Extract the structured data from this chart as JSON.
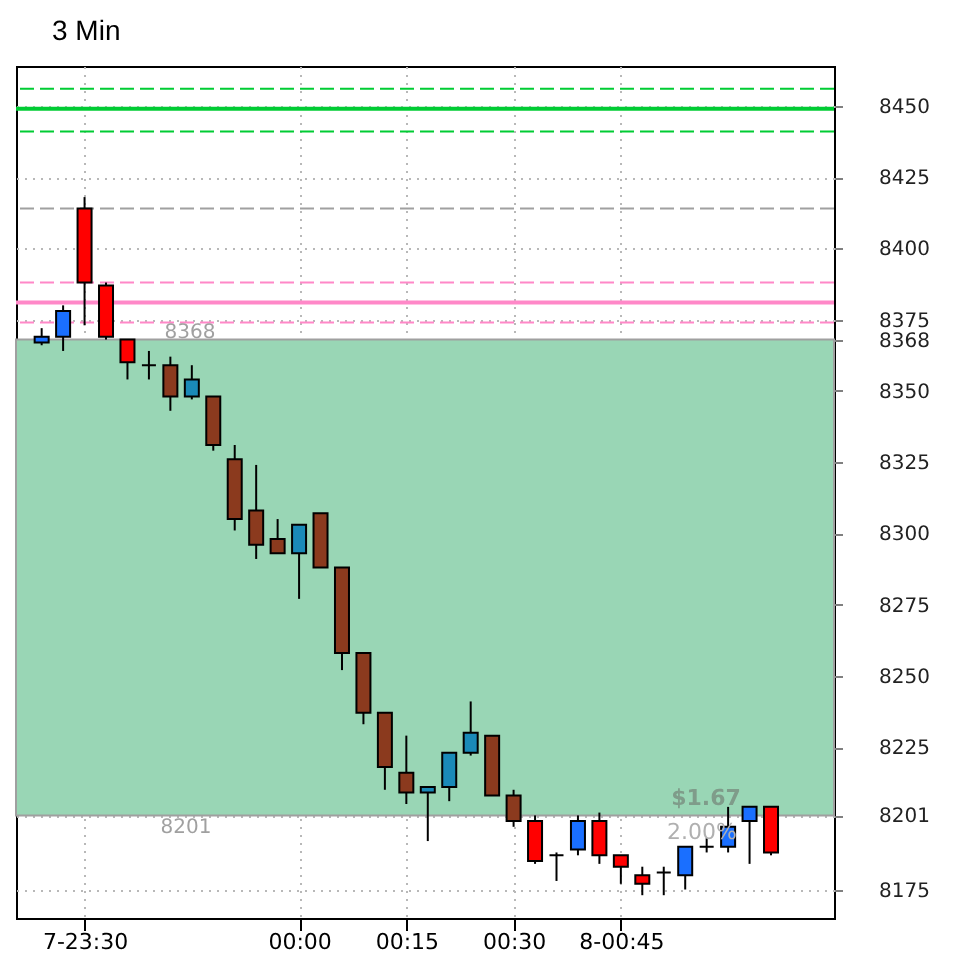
{
  "chart_data": {
    "type": "candlestick",
    "title": "3 Min",
    "categories": [
      null,
      null,
      "7-23:30",
      null,
      null,
      null,
      null,
      null,
      null,
      null,
      null,
      null,
      "00:00",
      null,
      null,
      null,
      null,
      "00:15",
      null,
      null,
      null,
      null,
      "00:30",
      null,
      null,
      null,
      null,
      "8-00:45",
      null,
      null,
      null,
      null,
      null,
      null,
      null
    ],
    "ohlc": [
      [
        8367,
        8372,
        8366,
        8369
      ],
      [
        8369,
        8380,
        8364,
        8378
      ],
      [
        8414,
        8418,
        8373,
        8388
      ],
      [
        8387,
        8388,
        8368,
        8369
      ],
      [
        8368,
        8368,
        8354,
        8360
      ],
      [
        8359,
        8364,
        8354,
        8359
      ],
      [
        8359,
        8362,
        8343,
        8348
      ],
      [
        8348,
        8359,
        8347,
        8354
      ],
      [
        8348,
        8348,
        8329,
        8331
      ],
      [
        8326,
        8331,
        8301,
        8305
      ],
      [
        8308,
        8324,
        8291,
        8296
      ],
      [
        8298,
        8305,
        8293,
        8293
      ],
      [
        8293,
        8303,
        8277,
        8303
      ],
      [
        8307,
        8307,
        8288,
        8288
      ],
      [
        8288,
        8288,
        8252,
        8258
      ],
      [
        8258,
        8258,
        8233,
        8237
      ],
      [
        8237,
        8237,
        8210,
        8218
      ],
      [
        8216,
        8229,
        8205,
        8209
      ],
      [
        8209,
        8211,
        8192,
        8211
      ],
      [
        8211,
        8223,
        8206,
        8223
      ],
      [
        8223,
        8241,
        8222,
        8230
      ],
      [
        8229,
        8229,
        8208,
        8208
      ],
      [
        8208,
        8210,
        8197,
        8199
      ],
      [
        8199,
        8201,
        8184,
        8185
      ],
      [
        8187,
        8188,
        8178,
        8187
      ],
      [
        8189,
        8201,
        8187,
        8199
      ],
      [
        8199,
        8202,
        8184,
        8187
      ],
      [
        8187,
        8187,
        8177,
        8183
      ],
      [
        8180,
        8183,
        8173,
        8177
      ],
      [
        8181,
        8183,
        8173,
        8181
      ],
      [
        8180,
        8190,
        8175,
        8190
      ],
      [
        8190,
        8193,
        8188,
        8190
      ],
      [
        8190,
        8204,
        8188,
        8197
      ],
      [
        8199,
        8204,
        8184,
        8204
      ],
      [
        8204,
        8204,
        8187,
        8188
      ]
    ],
    "colors": [
      "#1a6fff",
      "#1a6fff",
      "#ff0000",
      "#ff0000",
      "#ff0000",
      "#000000",
      "#8b3a1e",
      "#1a8ab8",
      "#8b3a1e",
      "#8b3a1e",
      "#8b3a1e",
      "#8b3a1e",
      "#1a8ab8",
      "#8b3a1e",
      "#8b3a1e",
      "#8b3a1e",
      "#8b3a1e",
      "#8b3a1e",
      "#1a8ab8",
      "#1a8ab8",
      "#1a8ab8",
      "#8b3a1e",
      "#8b3a1e",
      "#ff0000",
      "#000000",
      "#1a6fff",
      "#ff0000",
      "#ff0000",
      "#ff0000",
      "#000000",
      "#1a6fff",
      "#000000",
      "#1a6fff",
      "#1a6fff",
      "#ff0000"
    ],
    "ylim": [
      8165,
      8464
    ],
    "yticks": [
      8175,
      8201,
      8225,
      8250,
      8275,
      8300,
      8325,
      8350,
      8368,
      8375,
      8400,
      8425,
      8450
    ],
    "grid": true,
    "bands": [
      {
        "axis": "y",
        "from": 8201,
        "to": 8368,
        "color": "#99d6b5"
      }
    ],
    "ref_lines": [
      {
        "axis": "y",
        "value": 8456,
        "color": "#00cc33",
        "line_style": "dashed"
      },
      {
        "axis": "y",
        "value": 8449,
        "color": "#00cc33",
        "line_style": "solid"
      },
      {
        "axis": "y",
        "value": 8441,
        "color": "#00cc33",
        "line_style": "dashed"
      },
      {
        "axis": "y",
        "value": 8414,
        "color": "#a0a0a0",
        "line_style": "dashed"
      },
      {
        "axis": "y",
        "value": 8388,
        "color": "#ff88c8",
        "line_style": "dashed"
      },
      {
        "axis": "y",
        "value": 8381,
        "color": "#ff88c8",
        "line_style": "solid"
      },
      {
        "axis": "y",
        "value": 8374,
        "color": "#ff88c8",
        "line_style": "dashed"
      }
    ],
    "annotations": [
      {
        "text": "8368",
        "y": 8368
      },
      {
        "text": "8201",
        "y": 8201
      },
      {
        "text": "$1.67",
        "y": 8201
      },
      {
        "text": "2.00%",
        "y": 8201
      }
    ]
  }
}
